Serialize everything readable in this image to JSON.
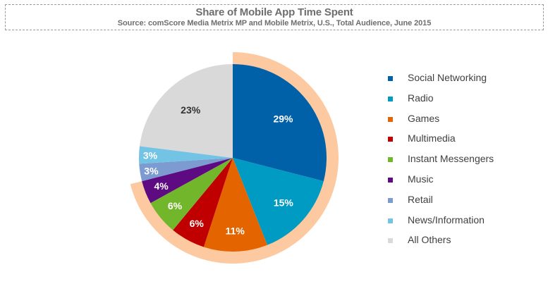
{
  "chart_data": {
    "type": "pie",
    "title": "Share of Mobile App Time Spent",
    "subtitle": "Source: comScore Media Metrix MP and Mobile Metrix, U.S., Total Audience, June 2015",
    "start_angle": "top",
    "direction": "clockwise",
    "legend_position": "right",
    "highlight_ring": {
      "color": "#fdc9a0",
      "covers_categories": [
        "Social Networking",
        "Radio",
        "Games",
        "Multimedia",
        "Instant Messengers",
        "Music"
      ]
    },
    "slices": [
      {
        "name": "Social Networking",
        "value": 29,
        "label": "29%",
        "color": "#0060a8",
        "label_color": "#ffffff"
      },
      {
        "name": "Radio",
        "value": 15,
        "label": "15%",
        "color": "#009bc2",
        "label_color": "#ffffff"
      },
      {
        "name": "Games",
        "value": 11,
        "label": "11%",
        "color": "#e46400",
        "label_color": "#ffffff"
      },
      {
        "name": "Multimedia",
        "value": 6,
        "label": "6%",
        "color": "#c00000",
        "label_color": "#ffffff"
      },
      {
        "name": "Instant Messengers",
        "value": 6,
        "label": "6%",
        "color": "#72b62b",
        "label_color": "#ffffff"
      },
      {
        "name": "Music",
        "value": 4,
        "label": "4%",
        "color": "#5e0a83",
        "label_color": "#ffffff"
      },
      {
        "name": "Retail",
        "value": 3,
        "label": "3%",
        "color": "#7c9bd1",
        "label_color": "#ffffff"
      },
      {
        "name": "News/Information",
        "value": 3,
        "label": "3%",
        "color": "#73c3e5",
        "label_color": "#ffffff"
      },
      {
        "name": "All Others",
        "value": 23,
        "label": "23%",
        "color": "#d9d9d9",
        "label_color": "#333333"
      }
    ]
  }
}
